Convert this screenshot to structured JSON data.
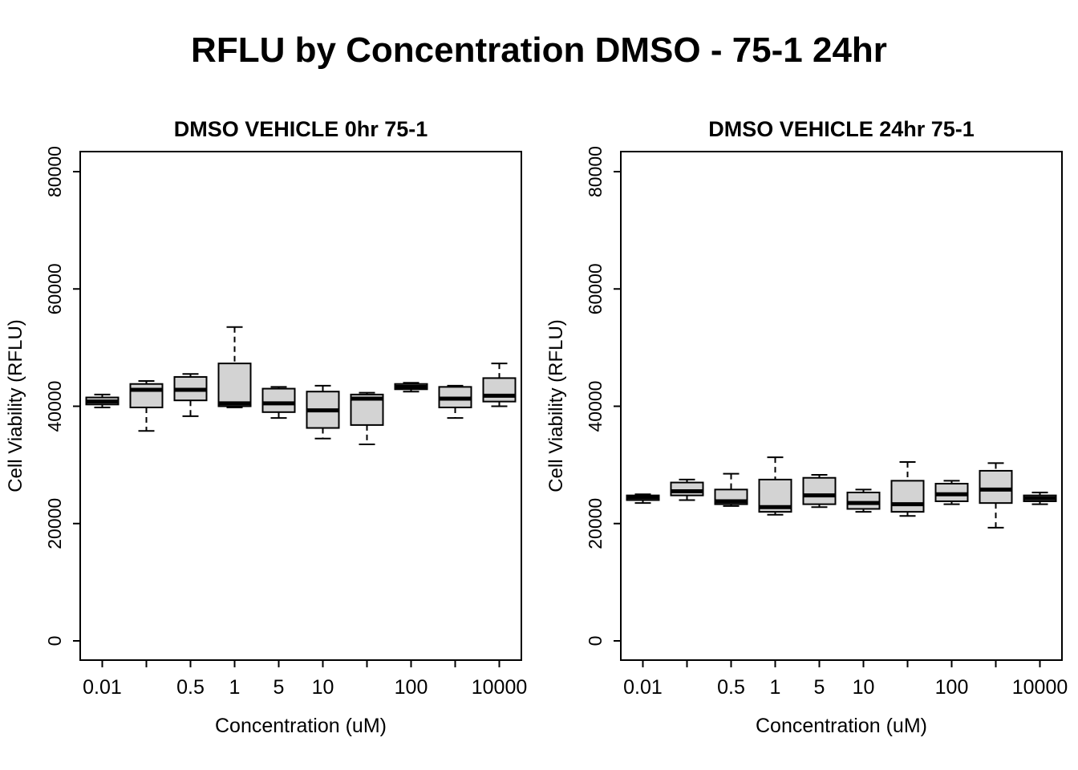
{
  "page": {
    "title": "RFLU by Concentration DMSO - 75-1 24hr"
  },
  "style": {
    "box_fill": "#d3d3d3",
    "line_color": "#000000",
    "background": "#ffffff"
  },
  "chart_data": [
    {
      "type": "boxplot",
      "title": "DMSO VEHICLE 0hr 75-1",
      "xlabel": "Concentration (uM)",
      "ylabel": "Cell Viability (RFLU)",
      "ylim": [
        0,
        80000
      ],
      "yticks": [
        0,
        20000,
        40000,
        60000,
        80000
      ],
      "grid": false,
      "tick_labels": [
        "0.01",
        "",
        "0.5",
        "1",
        "5",
        "10",
        "",
        "100",
        "",
        "10000"
      ],
      "boxes": [
        {
          "low": 39800,
          "q1": 40300,
          "median": 40800,
          "q3": 41500,
          "high": 42000
        },
        {
          "low": 35800,
          "q1": 39800,
          "median": 42800,
          "q3": 43800,
          "high": 44300
        },
        {
          "low": 38300,
          "q1": 41000,
          "median": 42800,
          "q3": 45000,
          "high": 45500
        },
        {
          "low": 39800,
          "q1": 40000,
          "median": 40500,
          "q3": 47300,
          "high": 53500
        },
        {
          "low": 38000,
          "q1": 39000,
          "median": 40500,
          "q3": 43000,
          "high": 43300
        },
        {
          "low": 34500,
          "q1": 36300,
          "median": 39300,
          "q3": 42500,
          "high": 43500
        },
        {
          "low": 33500,
          "q1": 36800,
          "median": 41300,
          "q3": 42000,
          "high": 42300
        },
        {
          "low": 42500,
          "q1": 42900,
          "median": 43300,
          "q3": 43800,
          "high": 44000
        },
        {
          "low": 38000,
          "q1": 39800,
          "median": 41300,
          "q3": 43300,
          "high": 43500
        },
        {
          "low": 40000,
          "q1": 40800,
          "median": 41800,
          "q3": 44800,
          "high": 47300
        }
      ]
    },
    {
      "type": "boxplot",
      "title": "DMSO VEHICLE 24hr 75-1",
      "xlabel": "Concentration (uM)",
      "ylabel": "Cell Viability (RFLU)",
      "ylim": [
        0,
        80000
      ],
      "yticks": [
        0,
        20000,
        40000,
        60000,
        80000
      ],
      "grid": false,
      "tick_labels": [
        "0.01",
        "",
        "0.5",
        "1",
        "5",
        "10",
        "",
        "100",
        "",
        "10000"
      ],
      "boxes": [
        {
          "low": 23500,
          "q1": 24000,
          "median": 24500,
          "q3": 24800,
          "high": 25000
        },
        {
          "low": 24000,
          "q1": 24800,
          "median": 25500,
          "q3": 27000,
          "high": 27500
        },
        {
          "low": 23000,
          "q1": 23300,
          "median": 23800,
          "q3": 25800,
          "high": 28500
        },
        {
          "low": 21500,
          "q1": 22000,
          "median": 22800,
          "q3": 27500,
          "high": 31300
        },
        {
          "low": 22800,
          "q1": 23300,
          "median": 24800,
          "q3": 27800,
          "high": 28300
        },
        {
          "low": 22000,
          "q1": 22500,
          "median": 23500,
          "q3": 25300,
          "high": 25800
        },
        {
          "low": 21300,
          "q1": 22000,
          "median": 23300,
          "q3": 27300,
          "high": 30500
        },
        {
          "low": 23300,
          "q1": 23800,
          "median": 25000,
          "q3": 26800,
          "high": 27300
        },
        {
          "low": 19300,
          "q1": 23500,
          "median": 25800,
          "q3": 29000,
          "high": 30300
        },
        {
          "low": 23300,
          "q1": 23800,
          "median": 24300,
          "q3": 24800,
          "high": 25300
        }
      ]
    }
  ]
}
